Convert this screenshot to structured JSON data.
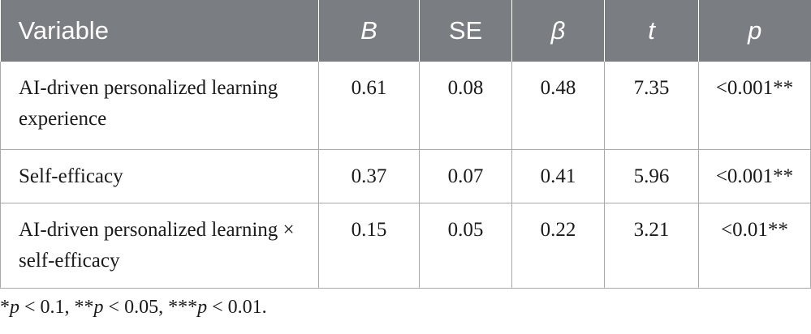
{
  "table": {
    "headers": [
      {
        "label": "Variable"
      },
      {
        "label": "B"
      },
      {
        "label": "SE"
      },
      {
        "label": "β"
      },
      {
        "label": "t"
      },
      {
        "label": "p"
      }
    ],
    "rows": [
      {
        "variable": "AI-driven personalized learning experience",
        "B": "0.61",
        "SE": "0.08",
        "beta": "0.48",
        "t": "7.35",
        "p": "<0.001**"
      },
      {
        "variable": "Self-efficacy",
        "B": "0.37",
        "SE": "0.07",
        "beta": "0.41",
        "t": "5.96",
        "p": "<0.001**"
      },
      {
        "variable": "AI-driven personalized learning × self-efficacy",
        "B": "0.15",
        "SE": "0.05",
        "beta": "0.22",
        "t": "3.21",
        "p": "<0.01**"
      }
    ]
  },
  "footnote": {
    "s1": "*",
    "p1": "p",
    "v1": " < 0.1, **",
    "p2": "p",
    "v2": " < 0.05, ***",
    "p3": "p",
    "v3": " < 0.01."
  }
}
